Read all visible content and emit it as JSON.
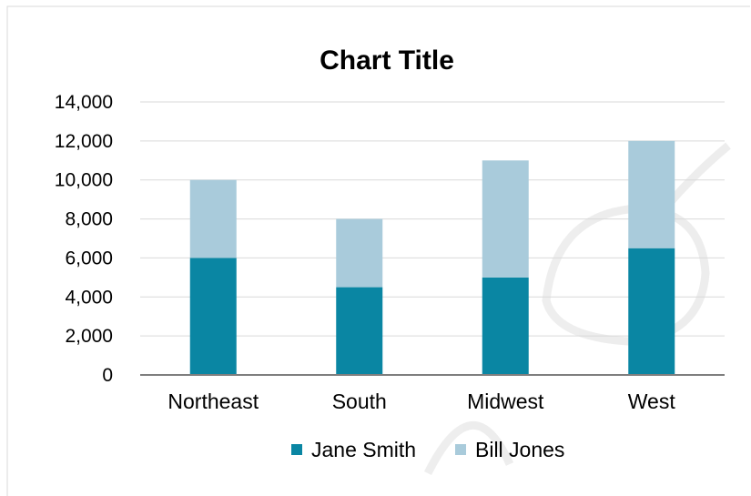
{
  "chart_data": {
    "type": "bar",
    "stacked": true,
    "title": "Chart Title",
    "xlabel": "",
    "ylabel": "",
    "categories": [
      "Northeast",
      "South",
      "Midwest",
      "West"
    ],
    "series": [
      {
        "name": "Jane Smith",
        "values": [
          6000,
          4500,
          5000,
          6500
        ],
        "color": "#0a86a3"
      },
      {
        "name": "Bill Jones",
        "values": [
          4000,
          3500,
          6000,
          5500
        ],
        "color": "#a9cbdb"
      }
    ],
    "ylim": [
      0,
      14000
    ],
    "yticks": [
      "0",
      "2,000",
      "4,000",
      "6,000",
      "8,000",
      "10,000",
      "12,000",
      "14,000"
    ],
    "grid": true,
    "legend_position": "bottom"
  }
}
